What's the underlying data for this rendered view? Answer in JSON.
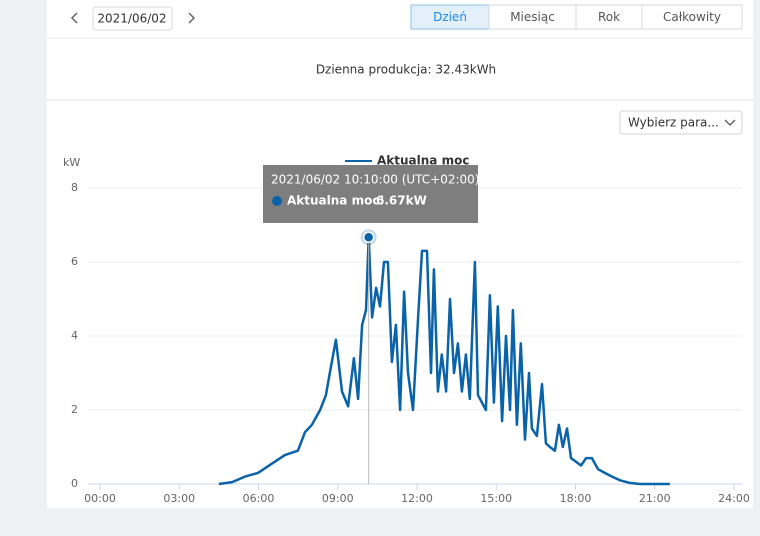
{
  "nav": {
    "date": "2021/06/02",
    "tabs": [
      "Dzień",
      "Miesiąc",
      "Rok",
      "Całkowity"
    ]
  },
  "summary": "Dzienna produkcja: 32.43kWh",
  "selector": "Wybierz para...",
  "chart_data": {
    "type": "line",
    "y_label": "kW",
    "x": [
      4.5,
      5.0,
      5.49,
      5.98,
      6.51,
      7.0,
      7.49,
      7.76,
      8.02,
      8.33,
      8.55,
      8.7,
      8.93,
      9.16,
      9.39,
      9.61,
      9.77,
      9.92,
      10.07,
      10.17,
      10.3,
      10.45,
      10.6,
      10.75,
      10.9,
      11.05,
      11.2,
      11.36,
      11.51,
      11.66,
      11.85,
      12.04,
      12.19,
      12.38,
      12.53,
      12.64,
      12.79,
      12.94,
      13.1,
      13.25,
      13.4,
      13.55,
      13.7,
      13.85,
      14.0,
      14.19,
      14.31,
      14.46,
      14.61,
      14.76,
      14.91,
      15.06,
      15.22,
      15.37,
      15.52,
      15.63,
      15.78,
      15.93,
      16.09,
      16.24,
      16.35,
      16.54,
      16.73,
      16.88,
      17.03,
      17.22,
      17.37,
      17.52,
      17.68,
      17.83,
      18.02,
      18.21,
      18.4,
      18.62,
      18.85,
      19.11,
      19.38,
      19.68,
      20.06,
      20.44,
      21.57
    ],
    "series": [
      {
        "name": "Aktualna moc",
        "color": "#0a62a8",
        "values": [
          0,
          0.05,
          0.2,
          0.3,
          0.55,
          0.78,
          0.9,
          1.4,
          1.6,
          2.0,
          2.4,
          3.0,
          3.9,
          2.5,
          2.1,
          3.4,
          2.3,
          4.3,
          4.7,
          6.67,
          4.5,
          5.3,
          4.8,
          6.0,
          6.0,
          3.3,
          4.3,
          2.0,
          5.2,
          3.0,
          2.0,
          4.5,
          6.3,
          6.3,
          3.0,
          5.8,
          2.5,
          3.5,
          2.5,
          5.0,
          3.0,
          3.8,
          2.5,
          3.5,
          2.3,
          6.0,
          2.4,
          2.2,
          2.0,
          5.1,
          2.2,
          4.8,
          1.7,
          4.0,
          2.0,
          4.7,
          1.6,
          3.8,
          1.2,
          3.0,
          1.5,
          1.3,
          2.7,
          1.1,
          1.0,
          0.9,
          1.6,
          1.0,
          1.5,
          0.7,
          0.6,
          0.5,
          0.7,
          0.7,
          0.4,
          0.3,
          0.2,
          0.1,
          0.03,
          0,
          0
        ]
      }
    ],
    "xlim": [
      0,
      24
    ],
    "xticks": [
      {
        "value": 0,
        "label": "00:00"
      },
      {
        "value": 3,
        "label": "03:00"
      },
      {
        "value": 6,
        "label": "06:00"
      },
      {
        "value": 9,
        "label": "09:00"
      },
      {
        "value": 12,
        "label": "12:00"
      },
      {
        "value": 15,
        "label": "15:00"
      },
      {
        "value": 18,
        "label": "18:00"
      },
      {
        "value": 21,
        "label": "21:00"
      },
      {
        "value": 24,
        "label": "24:00"
      }
    ],
    "ylim": [
      0,
      8
    ],
    "yticks": [
      0,
      2,
      4,
      6,
      8
    ],
    "grid": true,
    "tooltip": {
      "title": "2021/06/02 10:10:00 (UTC+02:00)",
      "label": "Aktualna moc:",
      "value_label": "6.67kW"
    }
  }
}
